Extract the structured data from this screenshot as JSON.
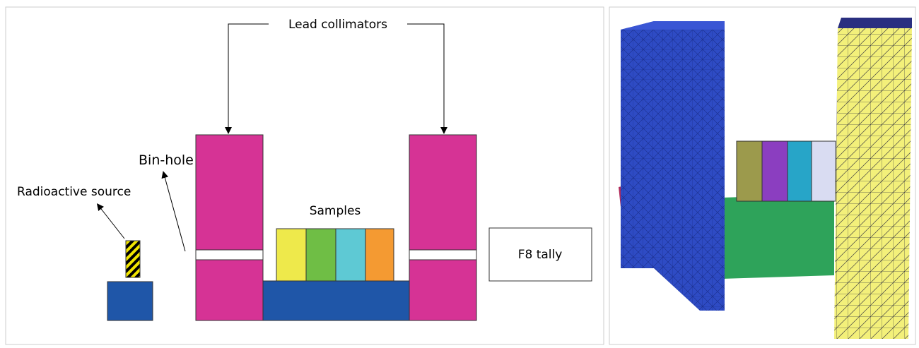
{
  "labels": {
    "collimators": "Lead collimators",
    "binhole": "Bin-hole",
    "source": "Radioactive source",
    "samples": "Samples",
    "tally": "F8 tally"
  }
}
